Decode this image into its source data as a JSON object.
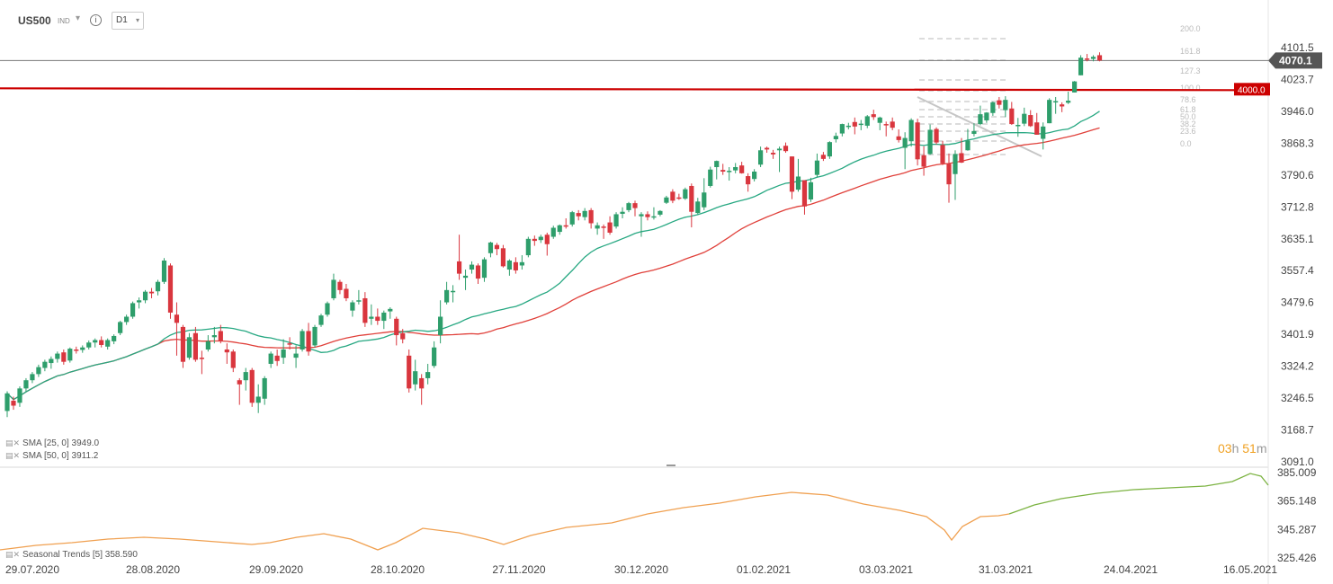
{
  "header": {
    "symbol": "US500",
    "exchange": "IND",
    "timeframe": "D1"
  },
  "main_price_axis": [
    "4101.5",
    "4023.7",
    "3946.0",
    "3868.3",
    "3790.6",
    "3712.8",
    "3635.1",
    "3557.4",
    "3479.6",
    "3401.9",
    "3324.2",
    "3246.5",
    "3168.7",
    "3091.0"
  ],
  "current_price_label": "4070.1",
  "horizontal_level_label": "4000.0",
  "fib_levels": [
    "200.0",
    "161.8",
    "127.3",
    "100.0",
    "78.6",
    "61.8",
    "50.0",
    "38.2",
    "23.6",
    "0.0"
  ],
  "indicators": {
    "sma25": "SMA [25, 0]  3949.0",
    "sma50": "SMA [50, 0]  3911.2",
    "seasonal": "Seasonal  Trends [5]  358.590"
  },
  "countdown": {
    "hours": "03",
    "h_unit": "h",
    "minutes": "51",
    "m_unit": "m"
  },
  "sub_axis": [
    "385.009",
    "365.148",
    "345.287",
    "325.426"
  ],
  "x_axis_labels": [
    "29.07.2020",
    "28.08.2020",
    "29.09.2020",
    "28.10.2020",
    "27.11.2020",
    "30.12.2020",
    "01.02.2021",
    "03.03.2021",
    "31.03.2021",
    "24.04.2021",
    "16.05.2021"
  ],
  "colors": {
    "up": "#2e9e6b",
    "down": "#d9363e",
    "sma25": "#27a882",
    "sma50": "#e0403a",
    "level": "#cc0000",
    "seasonal_past": "#f0a050",
    "seasonal_future": "#7cb342",
    "price_tag": "#555555",
    "countdown": "#f0a020"
  },
  "chart_data": {
    "type": "candlestick",
    "y_range": [
      3091.0,
      4101.5
    ],
    "series": [
      {
        "name": "SMA [25, 0]"
      },
      {
        "name": "SMA [50, 0]"
      },
      {
        "name": "Seasonal Trends [5]"
      }
    ],
    "candles": [
      [
        "29.07.2020",
        3215,
        3258,
        3200,
        3263
      ],
      [
        "30.07.2020",
        3240,
        3228,
        3218,
        3250
      ],
      [
        "31.07.2020",
        3235,
        3270,
        3225,
        3275
      ],
      [
        "03.08.2020",
        3270,
        3290,
        3262,
        3295
      ],
      [
        "04.08.2020",
        3290,
        3305,
        3283,
        3310
      ],
      [
        "05.08.2020",
        3305,
        3322,
        3298,
        3328
      ],
      [
        "06.08.2020",
        3320,
        3335,
        3312,
        3340
      ],
      [
        "07.08.2020",
        3332,
        3342,
        3318,
        3348
      ],
      [
        "10.08.2020",
        3342,
        3355,
        3333,
        3360
      ],
      [
        "11.08.2020",
        3358,
        3335,
        3328,
        3365
      ],
      [
        "12.08.2020",
        3338,
        3367,
        3333,
        3370
      ],
      [
        "13.08.2020",
        3365,
        3364,
        3355,
        3372
      ],
      [
        "14.08.2020",
        3364,
        3370,
        3357,
        3375
      ],
      [
        "17.08.2020",
        3370,
        3382,
        3365,
        3387
      ],
      [
        "18.08.2020",
        3382,
        3388,
        3370,
        3392
      ],
      [
        "19.08.2020",
        3388,
        3376,
        3370,
        3397
      ],
      [
        "20.08.2020",
        3372,
        3388,
        3365,
        3392
      ],
      [
        "21.08.2020",
        3385,
        3398,
        3378,
        3402
      ],
      [
        "24.08.2020",
        3405,
        3432,
        3400,
        3435
      ],
      [
        "25.08.2020",
        3432,
        3445,
        3425,
        3450
      ],
      [
        "26.08.2020",
        3445,
        3478,
        3440,
        3482
      ],
      [
        "27.08.2020",
        3480,
        3485,
        3465,
        3492
      ],
      [
        "28.08.2020",
        3485,
        3506,
        3478,
        3510
      ],
      [
        "31.08.2020",
        3506,
        3502,
        3490,
        3515
      ],
      [
        "01.09.2020",
        3507,
        3530,
        3497,
        3535
      ],
      [
        "02.09.2020",
        3530,
        3582,
        3525,
        3588
      ],
      [
        "03.09.2020",
        3570,
        3455,
        3440,
        3575
      ],
      [
        "04.09.2020",
        3450,
        3430,
        3350,
        3480
      ],
      [
        "08.09.2020",
        3420,
        3335,
        3320,
        3425
      ],
      [
        "09.09.2020",
        3345,
        3395,
        3340,
        3405
      ],
      [
        "10.09.2020",
        3405,
        3340,
        3335,
        3420
      ],
      [
        "11.09.2020",
        3345,
        3342,
        3305,
        3362
      ],
      [
        "14.09.2020",
        3365,
        3385,
        3360,
        3400
      ],
      [
        "15.09.2020",
        3395,
        3400,
        3380,
        3420
      ],
      [
        "16.09.2020",
        3410,
        3385,
        3380,
        3425
      ],
      [
        "17.09.2020",
        3365,
        3358,
        3330,
        3380
      ],
      [
        "18.09.2020",
        3360,
        3320,
        3310,
        3365
      ],
      [
        "21.09.2020",
        3290,
        3280,
        3230,
        3295
      ],
      [
        "22.09.2020",
        3290,
        3310,
        3265,
        3320
      ],
      [
        "23.09.2020",
        3315,
        3235,
        3225,
        3320
      ],
      [
        "24.09.2020",
        3235,
        3250,
        3210,
        3280
      ],
      [
        "25.09.2020",
        3245,
        3295,
        3230,
        3300
      ],
      [
        "28.09.2020",
        3330,
        3355,
        3320,
        3360
      ],
      [
        "29.09.2020",
        3350,
        3337,
        3325,
        3365
      ],
      [
        "30.09.2020",
        3345,
        3365,
        3330,
        3390
      ],
      [
        "01.10.2020",
        3380,
        3378,
        3365,
        3395
      ],
      [
        "02.10.2020",
        3345,
        3355,
        3320,
        3375
      ],
      [
        "05.10.2020",
        3365,
        3410,
        3360,
        3415
      ],
      [
        "06.10.2020",
        3410,
        3360,
        3350,
        3430
      ],
      [
        "07.10.2020",
        3375,
        3420,
        3370,
        3425
      ],
      [
        "08.10.2020",
        3425,
        3448,
        3420,
        3452
      ],
      [
        "09.10.2020",
        3450,
        3478,
        3445,
        3482
      ],
      [
        "12.10.2020",
        3490,
        3535,
        3485,
        3550
      ],
      [
        "13.10.2020",
        3530,
        3510,
        3500,
        3535
      ],
      [
        "14.10.2020",
        3513,
        3490,
        3483,
        3525
      ],
      [
        "15.10.2020",
        3460,
        3480,
        3445,
        3485
      ],
      [
        "16.10.2020",
        3485,
        3485,
        3475,
        3510
      ],
      [
        "19.10.2020",
        3490,
        3430,
        3420,
        3505
      ],
      [
        "20.10.2020",
        3440,
        3445,
        3425,
        3475
      ],
      [
        "21.10.2020",
        3445,
        3435,
        3425,
        3465
      ],
      [
        "22.10.2020",
        3435,
        3455,
        3415,
        3460
      ],
      [
        "23.10.2020",
        3458,
        3464,
        3440,
        3468
      ],
      [
        "26.10.2020",
        3440,
        3400,
        3375,
        3445
      ],
      [
        "27.10.2020",
        3405,
        3390,
        3380,
        3415
      ],
      [
        "28.10.2020",
        3350,
        3270,
        3260,
        3365
      ],
      [
        "29.10.2020",
        3280,
        3312,
        3265,
        3340
      ],
      [
        "30.10.2020",
        3295,
        3270,
        3230,
        3305
      ],
      [
        "02.11.2020",
        3295,
        3310,
        3280,
        3330
      ],
      [
        "03.11.2020",
        3325,
        3370,
        3320,
        3385
      ],
      [
        "04.11.2020",
        3400,
        3445,
        3380,
        3485
      ],
      [
        "05.11.2020",
        3480,
        3510,
        3475,
        3530
      ],
      [
        "06.11.2020",
        3505,
        3508,
        3480,
        3522
      ],
      [
        "09.11.2020",
        3580,
        3550,
        3535,
        3645
      ],
      [
        "10.11.2020",
        3540,
        3545,
        3510,
        3560
      ],
      [
        "11.11.2020",
        3560,
        3572,
        3550,
        3580
      ],
      [
        "12.11.2020",
        3570,
        3538,
        3525,
        3575
      ],
      [
        "13.11.2020",
        3540,
        3585,
        3530,
        3590
      ],
      [
        "16.11.2020",
        3600,
        3626,
        3590,
        3628
      ],
      [
        "17.11.2020",
        3620,
        3610,
        3595,
        3625
      ],
      [
        "18.11.2020",
        3612,
        3568,
        3565,
        3620
      ],
      [
        "19.11.2020",
        3560,
        3582,
        3545,
        3585
      ],
      [
        "20.11.2020",
        3578,
        3558,
        3550,
        3590
      ],
      [
        "23.11.2020",
        3570,
        3578,
        3560,
        3595
      ],
      [
        "24.11.2020",
        3595,
        3635,
        3590,
        3640
      ],
      [
        "25.11.2020",
        3635,
        3630,
        3618,
        3643
      ],
      [
        "27.11.2020",
        3632,
        3640,
        3625,
        3645
      ],
      [
        "30.11.2020",
        3645,
        3622,
        3594,
        3650
      ],
      [
        "01.12.2020",
        3640,
        3662,
        3635,
        3667
      ],
      [
        "02.12.2020",
        3652,
        3668,
        3645,
        3670
      ],
      [
        "03.12.2020",
        3668,
        3667,
        3660,
        3685
      ],
      [
        "04.12.2020",
        3670,
        3700,
        3665,
        3703
      ],
      [
        "07.12.2020",
        3698,
        3690,
        3680,
        3705
      ],
      [
        "08.12.2020",
        3688,
        3703,
        3680,
        3710
      ],
      [
        "09.12.2020",
        3705,
        3673,
        3660,
        3710
      ],
      [
        "10.12.2020",
        3660,
        3668,
        3645,
        3675
      ],
      [
        "11.12.2020",
        3665,
        3663,
        3635,
        3670
      ],
      [
        "14.12.2020",
        3675,
        3650,
        3645,
        3690
      ],
      [
        "15.12.2020",
        3665,
        3695,
        3660,
        3700
      ],
      [
        "16.12.2020",
        3696,
        3701,
        3685,
        3712
      ],
      [
        "17.12.2020",
        3705,
        3722,
        3700,
        3725
      ],
      [
        "18.12.2020",
        3722,
        3710,
        3690,
        3728
      ],
      [
        "21.12.2020",
        3690,
        3695,
        3640,
        3700
      ],
      [
        "22.12.2020",
        3695,
        3688,
        3680,
        3702
      ],
      [
        "23.12.2020",
        3688,
        3690,
        3682,
        3712
      ],
      [
        "24.12.2020",
        3694,
        3703,
        3690,
        3705
      ],
      [
        "28.12.2020",
        3723,
        3736,
        3720,
        3740
      ],
      [
        "29.12.2020",
        3750,
        3728,
        3722,
        3756
      ],
      [
        "30.12.2020",
        3736,
        3733,
        3730,
        3745
      ],
      [
        "31.12.2020",
        3733,
        3756,
        3730,
        3760
      ],
      [
        "04.01.2021",
        3764,
        3701,
        3663,
        3770
      ],
      [
        "05.01.2021",
        3698,
        3726,
        3695,
        3735
      ],
      [
        "06.01.2021",
        3712,
        3748,
        3705,
        3783
      ],
      [
        "07.01.2021",
        3764,
        3804,
        3760,
        3811
      ],
      [
        "08.01.2021",
        3810,
        3825,
        3780,
        3826
      ],
      [
        "11.01.2021",
        3803,
        3799,
        3791,
        3818
      ],
      [
        "12.01.2021",
        3801,
        3801,
        3777,
        3810
      ],
      [
        "13.01.2021",
        3802,
        3810,
        3795,
        3820
      ],
      [
        "14.01.2021",
        3814,
        3795,
        3794,
        3823
      ],
      [
        "15.01.2021",
        3788,
        3768,
        3750,
        3795
      ],
      [
        "19.01.2021",
        3781,
        3799,
        3775,
        3805
      ],
      [
        "20.01.2021",
        3816,
        3851,
        3810,
        3860
      ],
      [
        "21.01.2021",
        3857,
        3853,
        3845,
        3860
      ],
      [
        "22.01.2021",
        3845,
        3841,
        3830,
        3852
      ],
      [
        "25.01.2021",
        3851,
        3855,
        3798,
        3860
      ],
      [
        "26.01.2021",
        3862,
        3849,
        3845,
        3870
      ],
      [
        "27.01.2021",
        3836,
        3750,
        3732,
        3836
      ],
      [
        "28.01.2021",
        3755,
        3787,
        3750,
        3830
      ],
      [
        "29.01.2021",
        3778,
        3714,
        3694,
        3778
      ],
      [
        "01.02.2021",
        3731,
        3773,
        3725,
        3784
      ],
      [
        "02.02.2021",
        3791,
        3826,
        3785,
        3843
      ],
      [
        "03.02.2021",
        3840,
        3830,
        3825,
        3847
      ],
      [
        "04.02.2021",
        3836,
        3871,
        3830,
        3873
      ],
      [
        "05.02.2021",
        3878,
        3886,
        3870,
        3894
      ],
      [
        "08.02.2021",
        3892,
        3915,
        3885,
        3916
      ],
      [
        "09.02.2021",
        3910,
        3911,
        3902,
        3918
      ],
      [
        "10.02.2021",
        3920,
        3909,
        3890,
        3931
      ],
      [
        "11.02.2021",
        3916,
        3916,
        3900,
        3925
      ],
      [
        "12.02.2021",
        3911,
        3934,
        3905,
        3937
      ],
      [
        "16.02.2021",
        3939,
        3932,
        3925,
        3950
      ],
      [
        "17.02.2021",
        3918,
        3931,
        3900,
        3933
      ],
      [
        "18.02.2021",
        3915,
        3913,
        3885,
        3921
      ],
      [
        "19.02.2021",
        3921,
        3906,
        3900,
        3931
      ],
      [
        "22.02.2021",
        3885,
        3876,
        3870,
        3902
      ],
      [
        "23.02.2021",
        3857,
        3881,
        3805,
        3895
      ],
      [
        "24.02.2021",
        3873,
        3925,
        3860,
        3929
      ],
      [
        "25.02.2021",
        3919,
        3829,
        3814,
        3928
      ],
      [
        "26.02.2021",
        3839,
        3811,
        3789,
        3861
      ],
      [
        "01.03.2021",
        3842,
        3901,
        3840,
        3914
      ],
      [
        "02.03.2021",
        3903,
        3870,
        3865,
        3907
      ],
      [
        "03.03.2021",
        3864,
        3819,
        3815,
        3874
      ],
      [
        "04.03.2021",
        3818,
        3768,
        3723,
        3843
      ],
      [
        "05.03.2021",
        3793,
        3842,
        3730,
        3851
      ],
      [
        "08.03.2021",
        3844,
        3821,
        3820,
        3881
      ],
      [
        "09.03.2021",
        3851,
        3875,
        3850,
        3903
      ],
      [
        "10.03.2021",
        3891,
        3898,
        3885,
        3917
      ],
      [
        "11.03.2021",
        3915,
        3939,
        3912,
        3960
      ],
      [
        "12.03.2021",
        3924,
        3943,
        3918,
        3944
      ],
      [
        "15.03.2021",
        3942,
        3968,
        3935,
        3970
      ],
      [
        "16.03.2021",
        3973,
        3962,
        3953,
        3981
      ],
      [
        "17.03.2021",
        3949,
        3974,
        3932,
        3983
      ],
      [
        "18.03.2021",
        3953,
        3915,
        3913,
        3969
      ],
      [
        "19.03.2021",
        3913,
        3913,
        3884,
        3930
      ],
      [
        "22.03.2021",
        3916,
        3940,
        3910,
        3955
      ],
      [
        "23.03.2021",
        3937,
        3910,
        3908,
        3949
      ],
      [
        "24.03.2021",
        3919,
        3889,
        3889,
        3942
      ],
      [
        "25.03.2021",
        3879,
        3909,
        3853,
        3919
      ],
      [
        "26.03.2021",
        3917,
        3974,
        3917,
        3978
      ],
      [
        "29.03.2021",
        3969,
        3971,
        3940,
        3981
      ],
      [
        "30.03.2021",
        3963,
        3958,
        3944,
        3968
      ],
      [
        "31.03.2021",
        3967,
        3972,
        3964,
        3994
      ],
      [
        "01.04.2021",
        3992,
        4019,
        3992,
        4020
      ],
      [
        "05.04.2021",
        4034,
        4077,
        4034,
        4083
      ],
      [
        "06.04.2021",
        4075,
        4073,
        4068,
        4086
      ],
      [
        "07.04.2021",
        4074,
        4079,
        4068,
        4083
      ],
      [
        "08.04.2021",
        4083,
        4070,
        4068,
        4090
      ]
    ],
    "seasonal_last": "358.590",
    "sub_range": [
      325.426,
      385.009
    ]
  }
}
